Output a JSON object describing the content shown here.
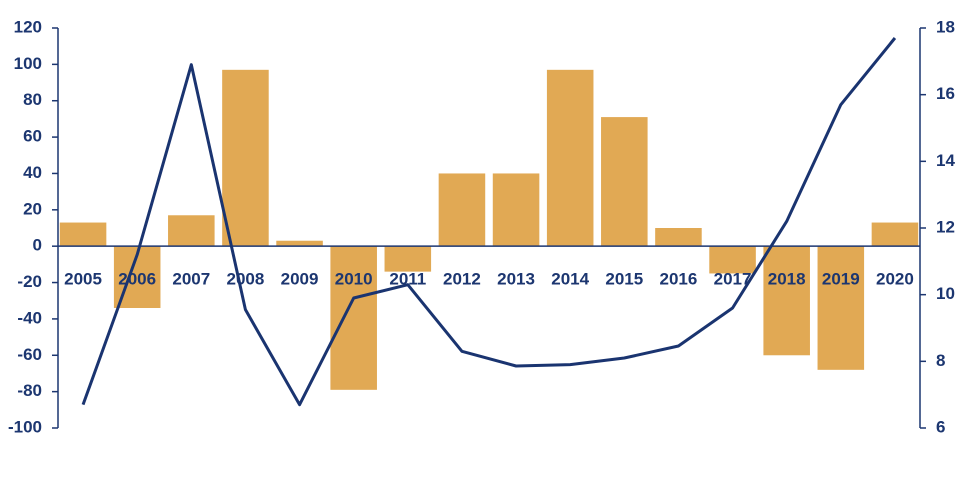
{
  "chart_data": {
    "type": "bar",
    "categories": [
      "2005",
      "2006",
      "2007",
      "2008",
      "2009",
      "2010",
      "2011",
      "2012",
      "2013",
      "2014",
      "2015",
      "2016",
      "2017",
      "2018",
      "2019",
      "2020"
    ],
    "series": [
      {
        "type": "bar",
        "color": "#e1a954",
        "values": [
          13,
          -34,
          17,
          97,
          3,
          -79,
          -14,
          40,
          40,
          97,
          71,
          10,
          -15,
          -60,
          -68,
          13
        ]
      },
      {
        "type": "line",
        "axis": "y2",
        "color": "#1a3470",
        "values": [
          6.7,
          11.2,
          16.9,
          9.55,
          6.7,
          9.9,
          10.3,
          8.3,
          7.86,
          7.9,
          8.1,
          8.46,
          9.6,
          12.2,
          15.7,
          17.7
        ]
      }
    ],
    "ylim": [
      -100,
      120
    ],
    "yticks": [
      -100,
      -80,
      -60,
      -40,
      -20,
      0,
      20,
      40,
      60,
      80,
      100,
      120
    ],
    "y2lim": [
      6,
      18
    ],
    "y2ticks": [
      6,
      8,
      10,
      12,
      14,
      16,
      18
    ]
  }
}
